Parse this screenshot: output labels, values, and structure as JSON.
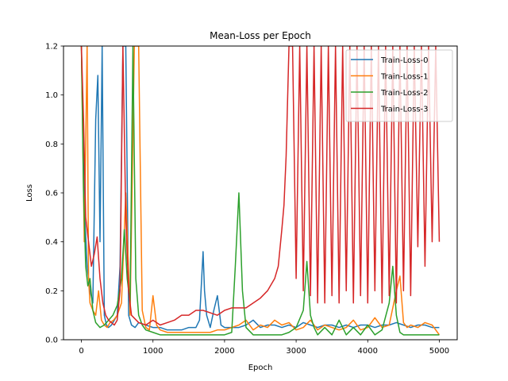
{
  "chart_data": {
    "type": "line",
    "title": "Mean-Loss per Epoch",
    "xlabel": "Epoch",
    "ylabel": "Loss",
    "xlim": [
      -250,
      5250
    ],
    "ylim": [
      0,
      1.2
    ],
    "xticks": [
      "0",
      "1000",
      "2000",
      "3000",
      "4000",
      "5000"
    ],
    "yticks": [
      "0.0",
      "0.2",
      "0.4",
      "0.6",
      "0.8",
      "1.0",
      "1.2"
    ],
    "grid": false,
    "legend_position": "top-right",
    "series": [
      {
        "name": "Train-Loss-0",
        "color": "#1f77b4",
        "x": [
          0,
          40,
          80,
          120,
          160,
          200,
          230,
          260,
          290,
          320,
          350,
          380,
          420,
          460,
          500,
          540,
          580,
          620,
          660,
          700,
          750,
          800,
          900,
          1000,
          1100,
          1200,
          1300,
          1400,
          1500,
          1600,
          1650,
          1700,
          1720,
          1750,
          1800,
          1850,
          1900,
          1950,
          2000,
          2100,
          2200,
          2300,
          2400,
          2500,
          2600,
          2700,
          2800,
          2900,
          3000,
          3100,
          3200,
          3300,
          3400,
          3500,
          3600,
          3700,
          3800,
          3900,
          4000,
          4100,
          4200,
          4300,
          4400,
          4500,
          4600,
          4700,
          4800,
          4900,
          5000
        ],
        "y": [
          1.2,
          0.55,
          0.3,
          0.2,
          0.15,
          0.9,
          1.08,
          0.4,
          1.2,
          0.1,
          0.06,
          0.05,
          0.06,
          0.08,
          0.1,
          0.3,
          1.2,
          1.2,
          0.1,
          0.06,
          0.05,
          0.07,
          0.06,
          0.05,
          0.05,
          0.04,
          0.04,
          0.04,
          0.05,
          0.05,
          0.08,
          0.36,
          0.2,
          0.1,
          0.05,
          0.12,
          0.18,
          0.06,
          0.05,
          0.05,
          0.05,
          0.06,
          0.08,
          0.05,
          0.06,
          0.06,
          0.05,
          0.06,
          0.05,
          0.07,
          0.06,
          0.05,
          0.06,
          0.06,
          0.05,
          0.06,
          0.05,
          0.06,
          0.06,
          0.05,
          0.06,
          0.06,
          0.07,
          0.06,
          0.05,
          0.06,
          0.06,
          0.05,
          0.05
        ]
      },
      {
        "name": "Train-Loss-1",
        "color": "#ff7f0e",
        "x": [
          0,
          40,
          80,
          100,
          120,
          160,
          200,
          240,
          280,
          320,
          360,
          400,
          450,
          500,
          560,
          620,
          680,
          740,
          800,
          850,
          900,
          950,
          1000,
          1050,
          1100,
          1200,
          1300,
          1400,
          1500,
          1600,
          1700,
          1800,
          1900,
          2000,
          2100,
          2200,
          2300,
          2400,
          2500,
          2600,
          2700,
          2800,
          2900,
          3000,
          3100,
          3200,
          3300,
          3400,
          3500,
          3600,
          3700,
          3800,
          3900,
          4000,
          4100,
          4200,
          4300,
          4400,
          4450,
          4500,
          4550,
          4600,
          4700,
          4800,
          4900,
          5000
        ],
        "y": [
          1.2,
          0.4,
          1.2,
          0.25,
          0.15,
          0.12,
          0.1,
          0.2,
          0.08,
          0.06,
          0.05,
          0.07,
          0.08,
          0.1,
          0.15,
          0.6,
          0.1,
          1.2,
          1.2,
          0.12,
          0.05,
          0.04,
          0.18,
          0.06,
          0.04,
          0.03,
          0.03,
          0.03,
          0.03,
          0.03,
          0.03,
          0.03,
          0.04,
          0.04,
          0.05,
          0.06,
          0.08,
          0.04,
          0.06,
          0.05,
          0.08,
          0.06,
          0.07,
          0.04,
          0.05,
          0.08,
          0.04,
          0.06,
          0.05,
          0.04,
          0.05,
          0.08,
          0.04,
          0.05,
          0.09,
          0.05,
          0.06,
          0.2,
          0.26,
          0.07,
          0.05,
          0.06,
          0.05,
          0.07,
          0.06,
          0.02
        ]
      },
      {
        "name": "Train-Loss-2",
        "color": "#2ca02c",
        "x": [
          0,
          30,
          60,
          90,
          120,
          160,
          200,
          260,
          320,
          380,
          440,
          500,
          560,
          600,
          640,
          680,
          720,
          760,
          800,
          850,
          900,
          1000,
          1100,
          1200,
          1300,
          1400,
          1500,
          1600,
          1700,
          1800,
          1900,
          2000,
          2100,
          2150,
          2200,
          2250,
          2300,
          2400,
          2500,
          2600,
          2700,
          2800,
          2900,
          3000,
          3100,
          3150,
          3200,
          3250,
          3300,
          3400,
          3500,
          3600,
          3700,
          3800,
          3900,
          4000,
          4100,
          4200,
          4300,
          4350,
          4400,
          4450,
          4500,
          4600,
          4700,
          4800,
          4900,
          5000
        ],
        "y": [
          1.2,
          0.6,
          0.3,
          0.22,
          0.25,
          0.12,
          0.07,
          0.05,
          0.06,
          0.08,
          0.1,
          0.14,
          0.25,
          0.45,
          0.25,
          0.15,
          1.2,
          0.25,
          0.1,
          0.06,
          0.04,
          0.03,
          0.02,
          0.02,
          0.02,
          0.02,
          0.02,
          0.02,
          0.02,
          0.02,
          0.02,
          0.02,
          0.03,
          0.3,
          0.6,
          0.2,
          0.05,
          0.02,
          0.02,
          0.02,
          0.02,
          0.02,
          0.03,
          0.05,
          0.12,
          0.32,
          0.1,
          0.05,
          0.02,
          0.05,
          0.02,
          0.08,
          0.02,
          0.05,
          0.02,
          0.06,
          0.02,
          0.04,
          0.15,
          0.3,
          0.1,
          0.03,
          0.02,
          0.02,
          0.02,
          0.02,
          0.02,
          0.02
        ]
      },
      {
        "name": "Train-Loss-3",
        "color": "#d62728",
        "x": [
          0,
          30,
          60,
          100,
          140,
          180,
          220,
          260,
          300,
          340,
          380,
          420,
          460,
          500,
          540,
          580,
          620,
          660,
          700,
          800,
          900,
          1000,
          1100,
          1200,
          1300,
          1400,
          1500,
          1600,
          1700,
          1800,
          1900,
          2000,
          2100,
          2200,
          2300,
          2400,
          2500,
          2600,
          2700,
          2750,
          2800,
          2830,
          2860,
          2900,
          2950,
          3000,
          3050,
          3100,
          3150,
          3200,
          3250,
          3300,
          3350,
          3400,
          3450,
          3500,
          3550,
          3600,
          3650,
          3700,
          3750,
          3800,
          3850,
          3900,
          3950,
          4000,
          4050,
          4100,
          4150,
          4200,
          4250,
          4300,
          4350,
          4400,
          4450,
          4500,
          4550,
          4600,
          4650,
          4700,
          4750,
          4800,
          4850,
          4900,
          4950,
          5000
        ],
        "y": [
          1.2,
          0.9,
          0.5,
          0.4,
          0.3,
          0.35,
          0.42,
          0.25,
          0.15,
          0.1,
          0.08,
          0.07,
          0.06,
          0.08,
          0.2,
          1.2,
          0.5,
          0.2,
          0.1,
          0.07,
          0.06,
          0.08,
          0.06,
          0.07,
          0.08,
          0.1,
          0.1,
          0.12,
          0.12,
          0.11,
          0.1,
          0.12,
          0.13,
          0.13,
          0.13,
          0.15,
          0.17,
          0.2,
          0.25,
          0.3,
          0.45,
          0.55,
          0.75,
          1.2,
          1.2,
          0.25,
          1.2,
          0.2,
          1.2,
          0.18,
          1.2,
          0.15,
          1.2,
          0.15,
          1.2,
          0.18,
          1.2,
          0.15,
          1.2,
          0.2,
          1.2,
          0.15,
          1.2,
          0.18,
          1.2,
          0.15,
          1.2,
          0.2,
          1.2,
          0.15,
          1.2,
          0.18,
          1.2,
          0.15,
          1.2,
          0.2,
          1.2,
          0.18,
          1.2,
          0.38,
          1.2,
          0.3,
          1.2,
          0.4,
          1.2,
          0.4
        ]
      }
    ]
  }
}
